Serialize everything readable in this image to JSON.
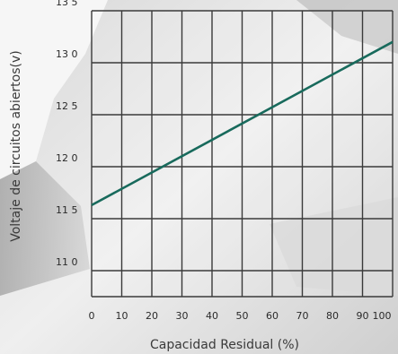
{
  "chart_data": {
    "type": "line",
    "xlabel": "Capacidad Residual (%)",
    "ylabel": "Voltaje de circuitos abiertos(v)",
    "x_ticks": [
      "0",
      "10",
      "20",
      "30",
      "40",
      "50",
      "60",
      "70",
      "80",
      "90",
      "100"
    ],
    "y_ticks": [
      "11 0",
      "11 5",
      "12 0",
      "12 5",
      "13 0",
      "13 5"
    ],
    "xlim": [
      0,
      100
    ],
    "ylim": [
      10.75,
      13.5
    ],
    "grid": true,
    "series": [
      {
        "x": [
          0,
          100
        ],
        "y": [
          11.63,
          13.2
        ],
        "color": "#186a5c"
      }
    ]
  }
}
